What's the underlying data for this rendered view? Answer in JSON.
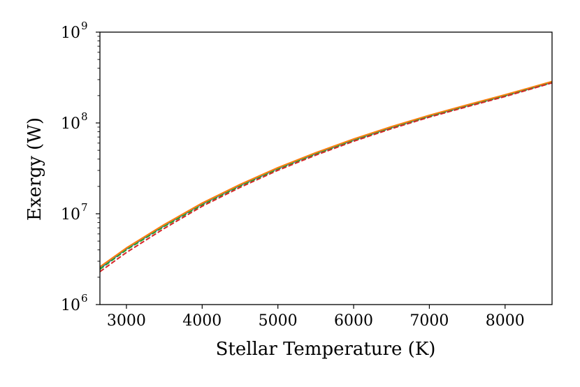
{
  "chart_data": {
    "type": "line",
    "xlabel": "Stellar Temperature (K)",
    "ylabel": "Exergy (W)",
    "xlim": [
      2650,
      8620
    ],
    "ylim": [
      1000000,
      1000000000
    ],
    "yscale": "log",
    "x_ticks": [
      3000,
      4000,
      5000,
      6000,
      7000,
      8000
    ],
    "y_ticks": [
      {
        "value": 1000000,
        "base": "10",
        "exp": "6"
      },
      {
        "value": 10000000,
        "base": "10",
        "exp": "7"
      },
      {
        "value": 100000000,
        "base": "10",
        "exp": "8"
      },
      {
        "value": 1000000000,
        "base": "10",
        "exp": "9"
      }
    ],
    "grid": false,
    "x": [
      2650,
      3000,
      3500,
      4000,
      4500,
      5000,
      5500,
      6000,
      6500,
      7000,
      7500,
      8000,
      8620
    ],
    "series": [
      {
        "color": "#1f77b4",
        "dash": "solid",
        "width": 2.0,
        "values": [
          2500000,
          4100000,
          7400000,
          12800000,
          20500000,
          31500000,
          46000000,
          65000000,
          89000000,
          119000000,
          155000000,
          200000000,
          280000000
        ]
      },
      {
        "color": "#ff7f0e",
        "dash": "solid",
        "width": 2.2,
        "values": [
          2600000,
          4200000,
          7600000,
          13100000,
          21000000,
          32200000,
          47000000,
          66500000,
          91000000,
          121500000,
          158000000,
          204000000,
          286000000
        ]
      },
      {
        "color": "#2ca02c",
        "dash": "dashed",
        "width": 2.0,
        "values": [
          2450000,
          4000000,
          7250000,
          12500000,
          20100000,
          30900000,
          45200000,
          64000000,
          87800000,
          117500000,
          153000000,
          198000000,
          278000000
        ]
      },
      {
        "color": "#d62728",
        "dash": "dashed",
        "width": 2.0,
        "values": [
          2300000,
          3750000,
          6900000,
          12100000,
          19500000,
          30100000,
          44200000,
          62800000,
          86400000,
          115800000,
          151000000,
          195500000,
          276000000
        ]
      }
    ]
  }
}
